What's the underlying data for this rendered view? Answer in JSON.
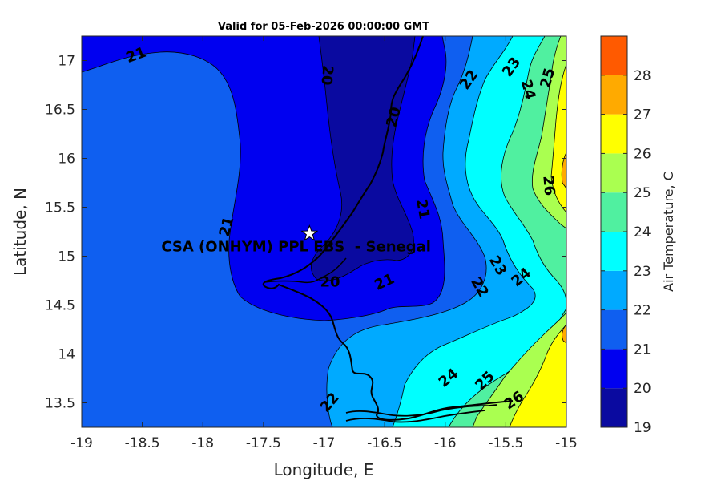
{
  "title": "Valid for 05-Feb-2026 00:00:00 GMT",
  "x_axis": {
    "label": "Longitude, E",
    "ticks": [
      "-19",
      "-18.5",
      "-18",
      "-17.5",
      "-17",
      "-16.5",
      "-16",
      "-15.5",
      "-15"
    ]
  },
  "y_axis": {
    "label": "Latitude, N",
    "ticks": [
      "13.5",
      "14",
      "14.5",
      "15",
      "15.5",
      "16",
      "16.5",
      "17"
    ]
  },
  "colorbar": {
    "label": "Air Temperature, C",
    "ticks": [
      "19",
      "20",
      "21",
      "22",
      "23",
      "24",
      "25",
      "26",
      "27",
      "28"
    ],
    "colors": [
      "#0a0aa0",
      "#0000f0",
      "#0f5ff0",
      "#00aaff",
      "#00ffff",
      "#50f0a0",
      "#aaff50",
      "#ffff00",
      "#ffaa00",
      "#ff5a00"
    ]
  },
  "site": {
    "label": "CSA (ONHYM) PPL EBS  - Senegal",
    "marker": "white star",
    "lon": -17.12,
    "lat": 15.23
  },
  "contour_labels": [
    {
      "text": "21",
      "lon": -18.55,
      "lat": 17.05,
      "rot": -20
    },
    {
      "text": "20",
      "lon": -16.98,
      "lat": 16.85,
      "rot": 95
    },
    {
      "text": "20",
      "lon": -16.42,
      "lat": 16.42,
      "rot": -75
    },
    {
      "text": "21",
      "lon": -16.19,
      "lat": 15.48,
      "rot": 80
    },
    {
      "text": "21",
      "lon": -17.8,
      "lat": 15.3,
      "rot": -75
    },
    {
      "text": "20",
      "lon": -16.95,
      "lat": 14.73,
      "rot": 0
    },
    {
      "text": "21",
      "lon": -16.5,
      "lat": 14.73,
      "rot": -25
    },
    {
      "text": "22",
      "lon": -15.8,
      "lat": 16.8,
      "rot": -55
    },
    {
      "text": "23",
      "lon": -15.45,
      "lat": 16.93,
      "rot": -55
    },
    {
      "text": "24",
      "lon": -15.32,
      "lat": 16.7,
      "rot": 75
    },
    {
      "text": "25",
      "lon": -15.15,
      "lat": 16.82,
      "rot": -75
    },
    {
      "text": "26",
      "lon": -15.15,
      "lat": 15.72,
      "rot": 85
    },
    {
      "text": "23",
      "lon": -15.57,
      "lat": 14.9,
      "rot": 60
    },
    {
      "text": "22",
      "lon": -15.72,
      "lat": 14.68,
      "rot": 60
    },
    {
      "text": "24",
      "lon": -15.37,
      "lat": 14.78,
      "rot": -40
    },
    {
      "text": "22",
      "lon": -16.95,
      "lat": 13.5,
      "rot": -50
    },
    {
      "text": "24",
      "lon": -15.97,
      "lat": 13.75,
      "rot": -40
    },
    {
      "text": "25",
      "lon": -15.67,
      "lat": 13.72,
      "rot": -45
    },
    {
      "text": "26",
      "lon": -15.43,
      "lat": 13.52,
      "rot": -35
    }
  ]
}
